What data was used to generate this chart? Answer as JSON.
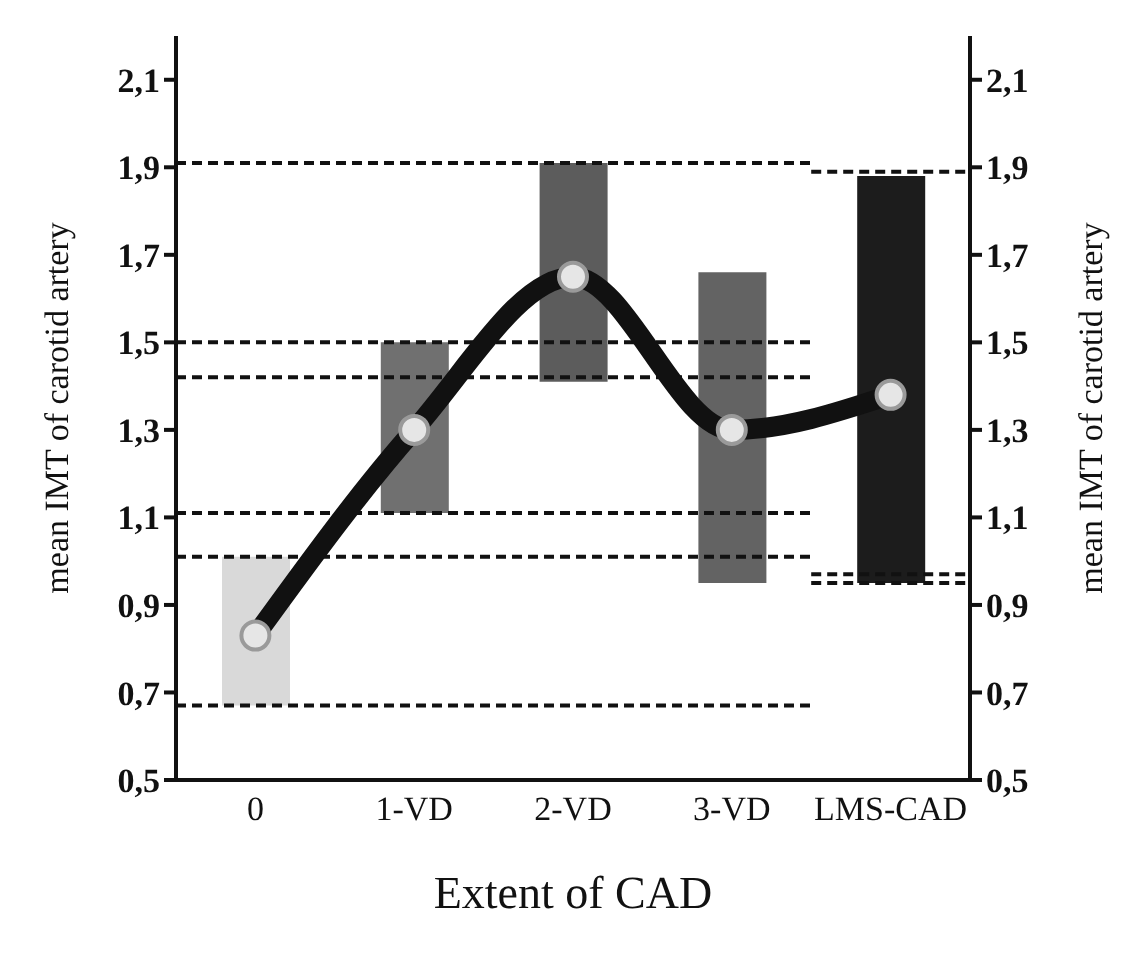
{
  "chart_data": {
    "type": "bar",
    "xlabel": "Extent of CAD",
    "ylabel": "mean IMT of carotid artery",
    "y2label": "mean IMT of carotid artery",
    "categories": [
      "0",
      "1-VD",
      "2-VD",
      "3-VD",
      "LMS-CAD"
    ],
    "series": [
      {
        "base": [
          0.67,
          1.11,
          1.41,
          0.95,
          0.95
        ],
        "values": [
          0.34,
          0.39,
          0.5,
          0.71,
          0.93
        ],
        "colors": [
          "#d9d9d9",
          "#707070",
          "#5c5c5c",
          "#636363",
          "#1c1c1c"
        ]
      },
      {
        "type": "line",
        "color": "#111111",
        "values": [
          0.83,
          1.3,
          1.65,
          1.3,
          1.38
        ],
        "marker": "circle"
      }
    ],
    "ylim": [
      0.5,
      2.2
    ],
    "yticks": [
      {
        "value": 0.5,
        "label": "0,5"
      },
      {
        "value": 0.7,
        "label": "0,7"
      },
      {
        "value": 0.9,
        "label": "0,9"
      },
      {
        "value": 1.1,
        "label": "1,1"
      },
      {
        "value": 1.3,
        "label": "1,3"
      },
      {
        "value": 1.5,
        "label": "1,5"
      },
      {
        "value": 1.7,
        "label": "1,7"
      },
      {
        "value": 1.9,
        "label": "1,9"
      },
      {
        "value": 2.1,
        "label": "2,1"
      }
    ],
    "y2lim": [
      0.5,
      2.2
    ],
    "y2ticks": [
      {
        "value": 0.5,
        "label": "0,5"
      },
      {
        "value": 0.7,
        "label": "0,7"
      },
      {
        "value": 0.9,
        "label": "0,9"
      },
      {
        "value": 1.1,
        "label": "1,1"
      },
      {
        "value": 1.3,
        "label": "1,3"
      },
      {
        "value": 1.5,
        "label": "1,5"
      },
      {
        "value": 1.7,
        "label": "1,7"
      },
      {
        "value": 1.9,
        "label": "1,9"
      },
      {
        "value": 2.1,
        "label": "2,1"
      }
    ],
    "ref_lines": [
      {
        "axis": "y",
        "value": 1.91,
        "line_style": "dashed",
        "color": "#111111"
      },
      {
        "axis": "y",
        "value": 1.5,
        "line_style": "dashed",
        "color": "#111111"
      },
      {
        "axis": "y",
        "value": 1.42,
        "line_style": "dashed",
        "color": "#111111"
      },
      {
        "axis": "y",
        "value": 1.11,
        "line_style": "dashed",
        "color": "#111111"
      },
      {
        "axis": "y",
        "value": 1.01,
        "line_style": "dashed",
        "color": "#111111"
      },
      {
        "axis": "y",
        "value": 0.67,
        "line_style": "dashed",
        "color": "#111111"
      },
      {
        "axis": "y2",
        "value": 1.89,
        "line_style": "dashed",
        "color": "#111111"
      },
      {
        "axis": "y2",
        "value": 0.97,
        "line_style": "dashed",
        "color": "#111111"
      },
      {
        "axis": "y2",
        "value": 0.95,
        "line_style": "dashed",
        "color": "#111111"
      }
    ],
    "grid": false,
    "legend": false
  }
}
